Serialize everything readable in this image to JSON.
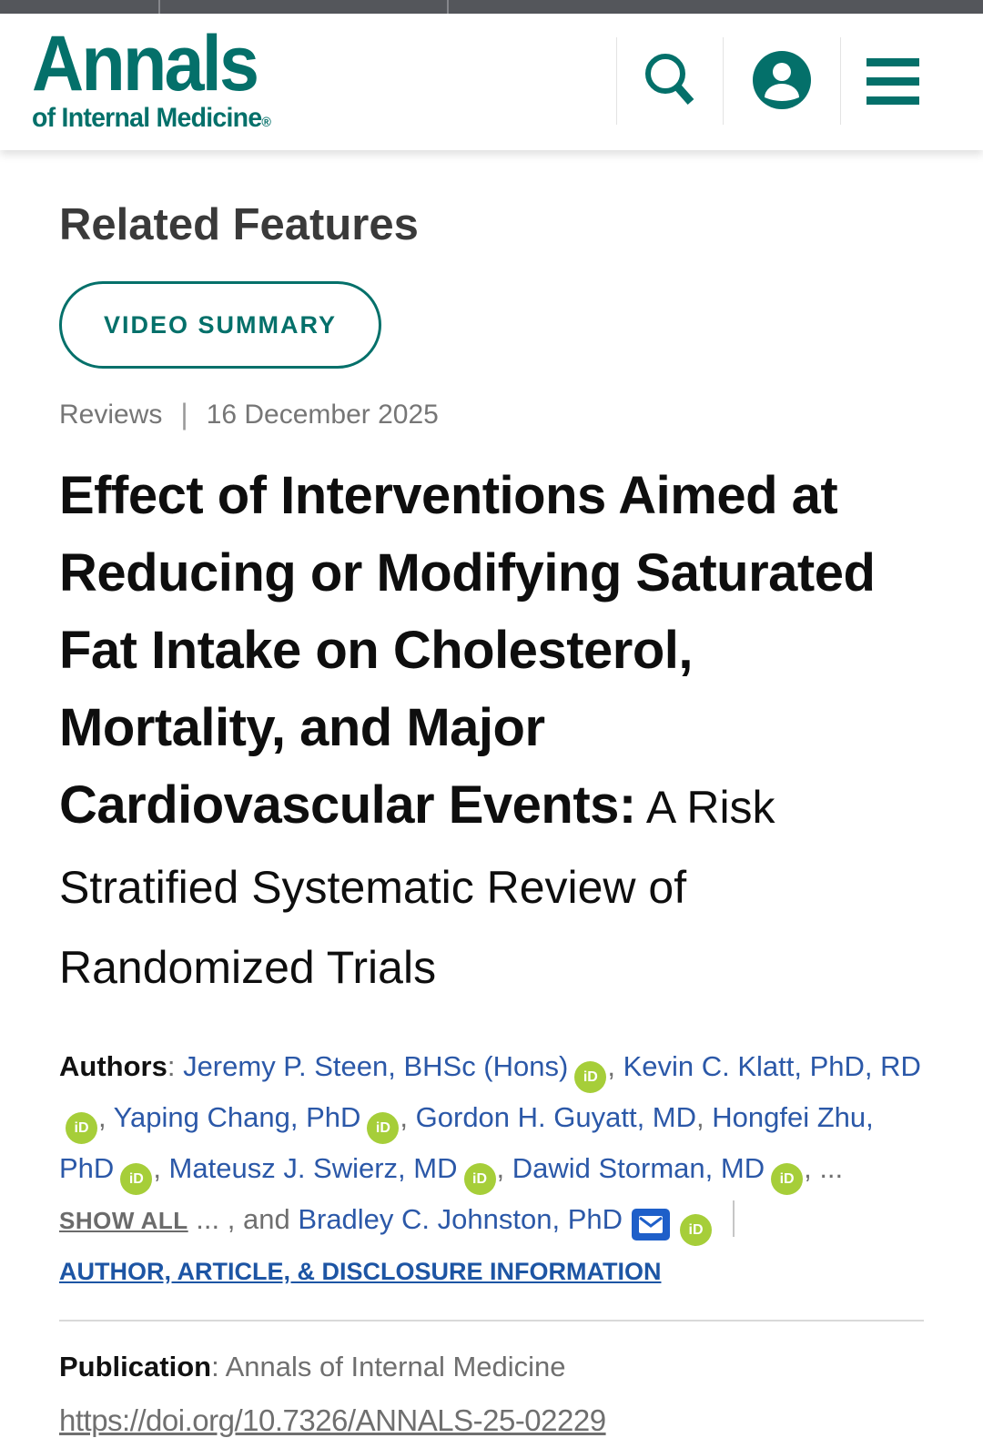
{
  "header": {
    "logo_line1": "Annals",
    "logo_line2": "of Internal Medicine",
    "registered": "®"
  },
  "page": {
    "section_title": "Related Features",
    "video_summary_label": "VIDEO SUMMARY",
    "meta": {
      "category": "Reviews",
      "separator": "|",
      "date": "16 December 2025"
    },
    "title_bold": "Effect of Interventions Aimed at Reducing or Modifying Saturated Fat Intake on Cholesterol, Mortality, and Major Cardiovascular Events:",
    "title_light": " A Risk Stratified Systematic Review of Randomized Trials"
  },
  "authors": {
    "label": "Authors",
    "label_separator": ": ",
    "segments": [
      {
        "type": "link",
        "text": "Jeremy P. Steen, BHSc (Hons)"
      },
      {
        "type": "orcid"
      },
      {
        "type": "text",
        "text": ", "
      },
      {
        "type": "link",
        "text": "Kevin C. Klatt, PhD, RD"
      },
      {
        "type": "orcid"
      },
      {
        "type": "text",
        "text": ", "
      },
      {
        "type": "link",
        "text": "Yaping Chang, PhD"
      },
      {
        "type": "orcid"
      },
      {
        "type": "text",
        "text": ", "
      },
      {
        "type": "link",
        "text": "Gordon H. Guyatt, MD"
      },
      {
        "type": "text",
        "text": ", "
      },
      {
        "type": "link",
        "text": "Hongfei Zhu, PhD"
      },
      {
        "type": "orcid"
      },
      {
        "type": "text",
        "text": ", "
      },
      {
        "type": "link",
        "text": "Mateusz J. Swierz, MD"
      },
      {
        "type": "orcid"
      },
      {
        "type": "text",
        "text": ", "
      },
      {
        "type": "link",
        "text": "Dawid Storman, MD"
      },
      {
        "type": "orcid"
      },
      {
        "type": "text",
        "text": ", ... "
      },
      {
        "type": "showall",
        "text": "SHOW ALL"
      },
      {
        "type": "text",
        "text": " ... , and "
      },
      {
        "type": "link",
        "text": "Bradley C. Johnston, PhD"
      },
      {
        "type": "email"
      },
      {
        "type": "orcid"
      }
    ],
    "disclosure_link": "AUTHOR, ARTICLE, & DISCLOSURE INFORMATION"
  },
  "publication": {
    "label": "Publication",
    "label_separator": ": ",
    "value": "Annals of Internal Medicine",
    "doi": "https://doi.org/10.7326/ANNALS-25-02229"
  },
  "icons": {
    "orcid_label": "iD",
    "search": "search-icon",
    "account": "user-account-icon",
    "menu": "hamburger-menu-icon",
    "email": "email-envelope-icon"
  },
  "colors": {
    "brand_teal": "#04706A",
    "link_blue": "#2B58A8",
    "disclosure_blue": "#1D55A4",
    "orcid_green": "#A6CE39",
    "email_blue": "#1E5FC9",
    "heading_gray": "#3A3A3A",
    "meta_gray": "#767676",
    "chrome_gray": "#54565B"
  }
}
